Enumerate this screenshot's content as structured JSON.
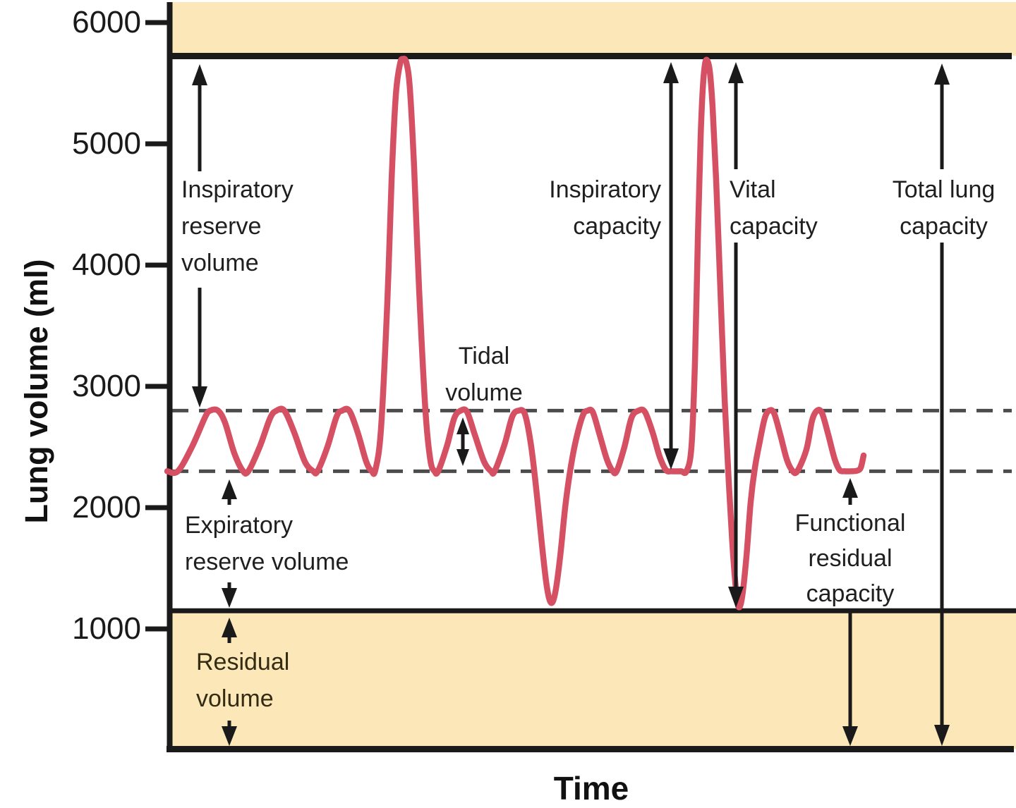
{
  "figure": {
    "y_axis_label": "Lung volume (ml)",
    "x_axis_label": "Time"
  },
  "annotations": {
    "irv": {
      "lines": [
        "Inspiratory",
        "reserve",
        "volume"
      ]
    },
    "tidal": {
      "lines": [
        "Tidal",
        "volume"
      ]
    },
    "erv": {
      "lines": [
        "Expiratory",
        "reserve volume"
      ]
    },
    "rv": {
      "lines": [
        "Residual",
        "volume"
      ]
    },
    "ic": {
      "lines": [
        "Inspiratory",
        "capacity"
      ]
    },
    "vc": {
      "lines": [
        "Vital",
        "capacity"
      ]
    },
    "tlc": {
      "lines": [
        "Total lung",
        "capacity"
      ]
    },
    "frc": {
      "lines": [
        "Functional",
        "residual",
        "capacity"
      ]
    }
  },
  "colors": {
    "band": "#fce7b8",
    "trace": "#d65064",
    "line": "#1a1a1a",
    "dashed": "#4c4c4c"
  },
  "chart_data": {
    "type": "line",
    "title": "",
    "xlabel": "Time",
    "ylabel": "Lung volume (ml)",
    "ylim": [
      0,
      6200
    ],
    "yticks": [
      1000,
      2000,
      3000,
      4000,
      5000,
      6000
    ],
    "grid": false,
    "x_units": "arbitrary time units",
    "legend": "none",
    "levels_ml": {
      "total_lung_capacity_line": 5750,
      "end_inspiration_dashed": 2800,
      "end_expiration_dashed": 2300,
      "residual_volume_line": 1150,
      "max_inspiration_peak": 5700,
      "max_expiration_trough": 1170,
      "tidal_volume_ml": 500
    },
    "series": [
      {
        "name": "spirogram",
        "color": "#d65064",
        "points": [
          [
            0,
            2300
          ],
          [
            15,
            2300
          ],
          [
            35,
            2500
          ],
          [
            54,
            2750
          ],
          [
            61,
            2800
          ],
          [
            72,
            2800
          ],
          [
            82,
            2700
          ],
          [
            95,
            2450
          ],
          [
            107,
            2305
          ],
          [
            115,
            2300
          ],
          [
            131,
            2500
          ],
          [
            146,
            2740
          ],
          [
            155,
            2800
          ],
          [
            166,
            2800
          ],
          [
            180,
            2620
          ],
          [
            195,
            2380
          ],
          [
            207,
            2300
          ],
          [
            213,
            2300
          ],
          [
            227,
            2500
          ],
          [
            240,
            2750
          ],
          [
            248,
            2800
          ],
          [
            258,
            2800
          ],
          [
            270,
            2620
          ],
          [
            282,
            2380
          ],
          [
            290,
            2300
          ],
          [
            295,
            2310
          ],
          [
            303,
            2650
          ],
          [
            312,
            3700
          ],
          [
            318,
            4700
          ],
          [
            324,
            5400
          ],
          [
            330,
            5660
          ],
          [
            334,
            5700
          ],
          [
            339,
            5670
          ],
          [
            344,
            5450
          ],
          [
            350,
            4800
          ],
          [
            357,
            3800
          ],
          [
            366,
            2800
          ],
          [
            373,
            2390
          ],
          [
            379,
            2300
          ],
          [
            384,
            2300
          ],
          [
            397,
            2520
          ],
          [
            407,
            2740
          ],
          [
            416,
            2800
          ],
          [
            425,
            2790
          ],
          [
            436,
            2600
          ],
          [
            449,
            2380
          ],
          [
            459,
            2300
          ],
          [
            464,
            2300
          ],
          [
            478,
            2520
          ],
          [
            489,
            2750
          ],
          [
            498,
            2800
          ],
          [
            507,
            2770
          ],
          [
            516,
            2500
          ],
          [
            524,
            2100
          ],
          [
            531,
            1700
          ],
          [
            538,
            1350
          ],
          [
            544,
            1215
          ],
          [
            550,
            1300
          ],
          [
            557,
            1600
          ],
          [
            564,
            2000
          ],
          [
            571,
            2300
          ],
          [
            579,
            2550
          ],
          [
            589,
            2760
          ],
          [
            596,
            2800
          ],
          [
            603,
            2790
          ],
          [
            612,
            2620
          ],
          [
            623,
            2400
          ],
          [
            631,
            2305
          ],
          [
            637,
            2300
          ],
          [
            648,
            2500
          ],
          [
            658,
            2740
          ],
          [
            668,
            2800
          ],
          [
            677,
            2790
          ],
          [
            688,
            2620
          ],
          [
            698,
            2420
          ],
          [
            707,
            2310
          ],
          [
            715,
            2300
          ],
          [
            728,
            2300
          ],
          [
            736,
            2300
          ],
          [
            743,
            2500
          ],
          [
            748,
            3200
          ],
          [
            752,
            4200
          ],
          [
            756,
            5050
          ],
          [
            759,
            5450
          ],
          [
            762,
            5650
          ],
          [
            765,
            5690
          ],
          [
            769,
            5600
          ],
          [
            773,
            5300
          ],
          [
            778,
            4700
          ],
          [
            784,
            3800
          ],
          [
            790,
            2900
          ],
          [
            796,
            2200
          ],
          [
            801,
            1700
          ],
          [
            806,
            1330
          ],
          [
            810,
            1180
          ],
          [
            815,
            1270
          ],
          [
            821,
            1600
          ],
          [
            827,
            2050
          ],
          [
            833,
            2330
          ],
          [
            840,
            2550
          ],
          [
            847,
            2740
          ],
          [
            853,
            2800
          ],
          [
            860,
            2780
          ],
          [
            869,
            2600
          ],
          [
            878,
            2400
          ],
          [
            886,
            2305
          ],
          [
            893,
            2300
          ],
          [
            906,
            2480
          ],
          [
            914,
            2720
          ],
          [
            921,
            2800
          ],
          [
            928,
            2780
          ],
          [
            937,
            2600
          ],
          [
            946,
            2400
          ],
          [
            953,
            2310
          ],
          [
            960,
            2300
          ],
          [
            970,
            2300
          ],
          [
            978,
            2305
          ],
          [
            983,
            2330
          ],
          [
            987,
            2430
          ]
        ]
      }
    ]
  }
}
